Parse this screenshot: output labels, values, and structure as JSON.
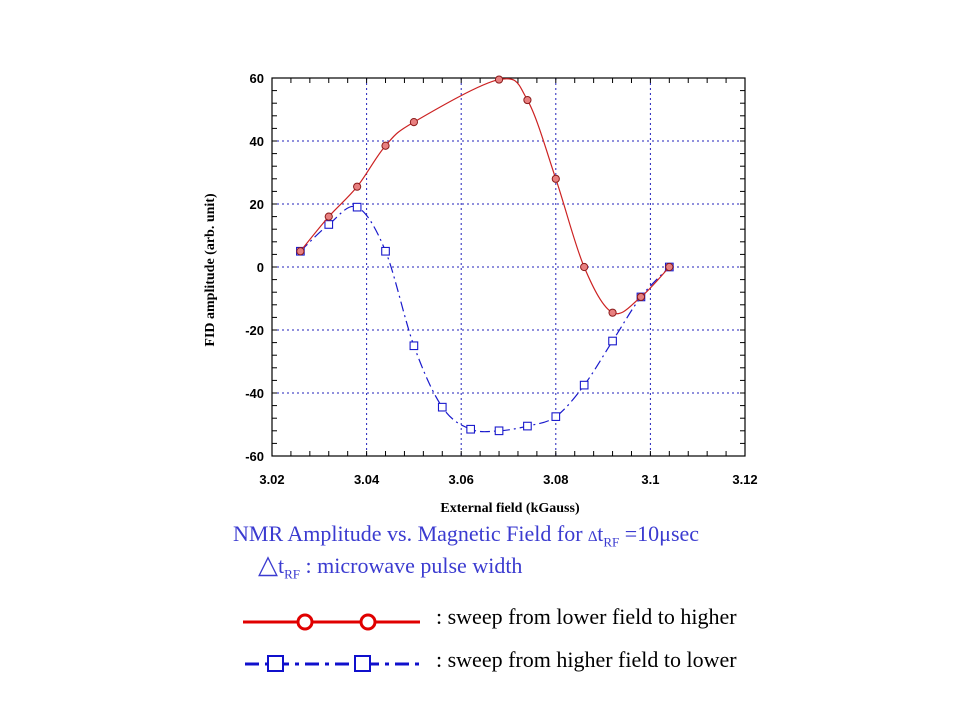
{
  "chart_data": {
    "type": "line",
    "xlabel": "External field (kGauss)",
    "ylabel": "FID amplitude (arb. unit)",
    "xlim": [
      3.02,
      3.12
    ],
    "ylim": [
      -60,
      60
    ],
    "x_ticks": [
      "3.02",
      "3.04",
      "3.06",
      "3.08",
      "3.1",
      "3.12"
    ],
    "y_ticks": [
      "60",
      "40",
      "20",
      "0",
      "-20",
      "-40",
      "-60"
    ],
    "grid": true,
    "series": [
      {
        "name": "sweep from lower field to higher",
        "color": "#cc2222",
        "marker": "circle",
        "line_style": "solid",
        "x": [
          3.026,
          3.032,
          3.038,
          3.044,
          3.05,
          3.068,
          3.074,
          3.08,
          3.086,
          3.092,
          3.098,
          3.104
        ],
        "y": [
          5,
          16,
          25.5,
          38.5,
          46,
          59.5,
          53,
          28,
          0,
          -14.5,
          -9.5,
          0
        ]
      },
      {
        "name": "sweep from higher field to lower",
        "color": "#1a1acc",
        "marker": "square",
        "line_style": "dashdot",
        "x": [
          3.026,
          3.032,
          3.038,
          3.044,
          3.05,
          3.056,
          3.062,
          3.068,
          3.074,
          3.08,
          3.086,
          3.092,
          3.098,
          3.104
        ],
        "y": [
          5,
          13.5,
          19,
          5,
          -25,
          -44.5,
          -51.5,
          -52,
          -50.5,
          -47.5,
          -37.5,
          -23.5,
          -9.5,
          0
        ]
      }
    ]
  },
  "caption": {
    "line1_prefix": "NMR Amplitude vs. Magnetic Field for ",
    "delta": "∆",
    "t": "t",
    "rf_sub": "RF",
    "line1_suffix": " =10μsec",
    "line2_delta": "△",
    "line2_t": "t",
    "line2_sub": "RF",
    "line2_suffix": " : microwave pulse width"
  },
  "legend": {
    "red_label": ": sweep from lower field to higher",
    "blue_label": ": sweep from higher field to lower"
  }
}
